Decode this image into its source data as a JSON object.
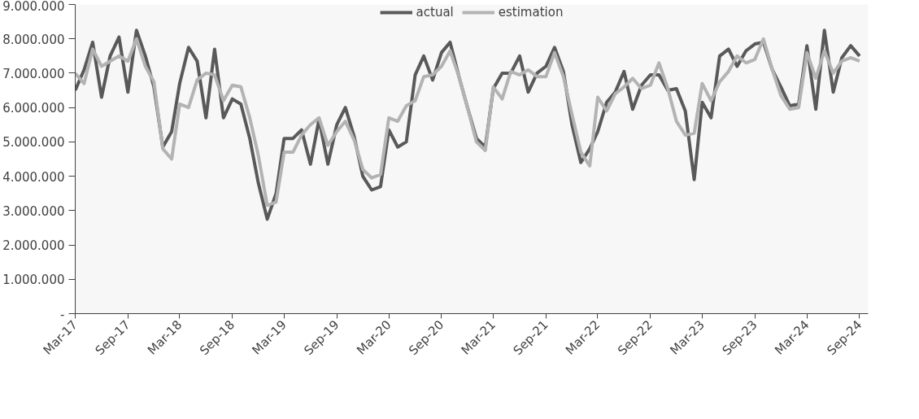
{
  "chart_data": {
    "type": "line",
    "x": [
      "2017-03",
      "2017-04",
      "2017-05",
      "2017-06",
      "2017-07",
      "2017-08",
      "2017-09",
      "2017-10",
      "2017-11",
      "2017-12",
      "2018-01",
      "2018-02",
      "2018-03",
      "2018-04",
      "2018-05",
      "2018-06",
      "2018-07",
      "2018-08",
      "2018-09",
      "2018-10",
      "2018-11",
      "2018-12",
      "2019-01",
      "2019-02",
      "2019-03",
      "2019-04",
      "2019-05",
      "2019-06",
      "2019-07",
      "2019-08",
      "2019-09",
      "2019-10",
      "2019-11",
      "2019-12",
      "2020-01",
      "2020-02",
      "2020-03",
      "2020-04",
      "2020-05",
      "2020-06",
      "2020-07",
      "2020-08",
      "2020-09",
      "2020-10",
      "2020-11",
      "2020-12",
      "2021-01",
      "2021-02",
      "2021-03",
      "2021-04",
      "2021-05",
      "2021-06",
      "2021-07",
      "2021-08",
      "2021-09",
      "2021-10",
      "2021-11",
      "2021-12",
      "2022-01",
      "2022-02",
      "2022-03",
      "2022-04",
      "2022-05",
      "2022-06",
      "2022-07",
      "2022-08",
      "2022-09",
      "2022-10",
      "2022-11",
      "2022-12",
      "2023-01",
      "2023-02",
      "2023-03",
      "2023-04",
      "2023-05",
      "2023-06",
      "2023-07",
      "2023-08",
      "2023-09",
      "2023-10",
      "2023-11",
      "2023-12",
      "2024-01",
      "2024-02",
      "2024-03",
      "2024-04",
      "2024-05",
      "2024-06",
      "2024-07",
      "2024-08",
      "2024-09"
    ],
    "series": [
      {
        "name": "actual",
        "color": "#595959",
        "values": [
          6500000,
          7100000,
          7900000,
          6300000,
          7500000,
          8050000,
          6450000,
          8250000,
          7500000,
          6600000,
          4850000,
          5300000,
          6700000,
          7750000,
          7350000,
          5700000,
          7700000,
          5700000,
          6250000,
          6100000,
          5100000,
          3800000,
          2750000,
          3500000,
          5100000,
          5100000,
          5350000,
          4350000,
          5650000,
          4350000,
          5500000,
          6000000,
          5150000,
          4000000,
          3600000,
          3700000,
          5350000,
          4850000,
          5000000,
          6950000,
          7500000,
          6800000,
          7600000,
          7900000,
          6900000,
          6000000,
          5100000,
          4850000,
          6550000,
          7000000,
          7000000,
          7500000,
          6450000,
          7000000,
          7200000,
          7750000,
          7050000,
          5500000,
          4400000,
          4800000,
          5300000,
          6150000,
          6450000,
          7050000,
          5950000,
          6650000,
          6950000,
          6950000,
          6500000,
          6550000,
          5900000,
          3900000,
          6150000,
          5700000,
          7500000,
          7700000,
          7200000,
          7650000,
          7850000,
          7900000,
          7100000,
          6600000,
          6050000,
          6100000,
          7800000,
          5950000,
          8250000,
          6450000,
          7450000,
          7800000,
          7500000
        ]
      },
      {
        "name": "estimation",
        "color": "#b3b3b3",
        "values": [
          7000000,
          6700000,
          7700000,
          7200000,
          7350000,
          7500000,
          7350000,
          8000000,
          7200000,
          6750000,
          4800000,
          4500000,
          6100000,
          6000000,
          6800000,
          7000000,
          6950000,
          6200000,
          6650000,
          6600000,
          5700000,
          4600000,
          3150000,
          3250000,
          4700000,
          4700000,
          5200000,
          5500000,
          5700000,
          4900000,
          5300000,
          5600000,
          5050000,
          4200000,
          3950000,
          4050000,
          5700000,
          5600000,
          6050000,
          6200000,
          6900000,
          6950000,
          7200000,
          7650000,
          6900000,
          6000000,
          5000000,
          4750000,
          6600000,
          6250000,
          7050000,
          6950000,
          7100000,
          6900000,
          6900000,
          7600000,
          6900000,
          5800000,
          4700000,
          4300000,
          6300000,
          5900000,
          6400000,
          6600000,
          6850000,
          6550000,
          6650000,
          7300000,
          6550000,
          5600000,
          5200000,
          5250000,
          6700000,
          6200000,
          6750000,
          7050000,
          7500000,
          7300000,
          7400000,
          8000000,
          7100000,
          6350000,
          5950000,
          6000000,
          7600000,
          6850000,
          7650000,
          7000000,
          7350000,
          7450000,
          7350000
        ]
      }
    ],
    "xlim": [
      "2017-03",
      "2024-10"
    ],
    "xticks": [
      {
        "value": "2017-03",
        "label": "Mar-17"
      },
      {
        "value": "2017-09",
        "label": "Sep-17"
      },
      {
        "value": "2018-03",
        "label": "Mar-18"
      },
      {
        "value": "2018-09",
        "label": "Sep-18"
      },
      {
        "value": "2019-03",
        "label": "Mar-19"
      },
      {
        "value": "2019-09",
        "label": "Sep-19"
      },
      {
        "value": "2020-03",
        "label": "Mar-20"
      },
      {
        "value": "2020-09",
        "label": "Sep-20"
      },
      {
        "value": "2021-03",
        "label": "Mar-21"
      },
      {
        "value": "2021-09",
        "label": "Sep-21"
      },
      {
        "value": "2022-03",
        "label": "Mar-22"
      },
      {
        "value": "2022-09",
        "label": "Sep-22"
      },
      {
        "value": "2023-03",
        "label": "Mar-23"
      },
      {
        "value": "2023-09",
        "label": "Sep-23"
      },
      {
        "value": "2024-03",
        "label": "Mar-24"
      },
      {
        "value": "2024-09",
        "label": "Sep-24"
      }
    ],
    "ylim": [
      0,
      9000000
    ],
    "yticks": [
      {
        "value": 0,
        "label": "-"
      },
      {
        "value": 1000000,
        "label": "1.000.000"
      },
      {
        "value": 2000000,
        "label": "2.000.000"
      },
      {
        "value": 3000000,
        "label": "3.000.000"
      },
      {
        "value": 4000000,
        "label": "4.000.000"
      },
      {
        "value": 5000000,
        "label": "5.000.000"
      },
      {
        "value": 6000000,
        "label": "6.000.000"
      },
      {
        "value": 7000000,
        "label": "7.000.000"
      },
      {
        "value": 8000000,
        "label": "8.000.000"
      },
      {
        "value": 9000000,
        "label": "9.000.000"
      }
    ],
    "grid": false,
    "legend": "top",
    "marker": "none",
    "line_style": "solid"
  }
}
